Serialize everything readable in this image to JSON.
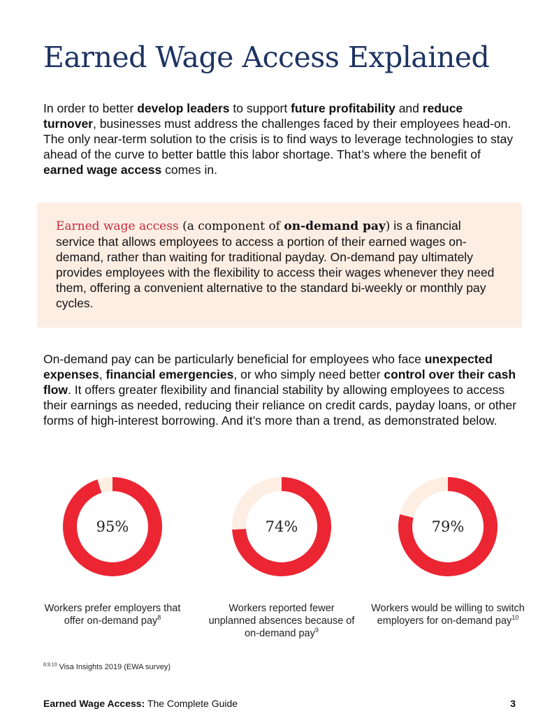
{
  "header": {
    "title": "Earned Wage Access Explained"
  },
  "intro": {
    "t1": "In order to better ",
    "b1": "develop leaders",
    "t2": " to support ",
    "b2": "future profitability",
    "t3": " and ",
    "b3": "reduce turnover",
    "t4": ", businesses must address the challenges faced by their employees head-on. The only near-term solution to the crisis is to find ways to leverage technologies to stay ahead of the curve to better battle this labor shortage. That’s where the benefit of ",
    "b4": "earned wage access",
    "t5": " comes in."
  },
  "callout": {
    "term": "Earned wage access",
    "paren_open": " (a component of ",
    "term2": "on-demand pay",
    "paren_close": ")",
    "body": " is a financial service that allows employees to access a portion of their earned wages on-demand, rather than waiting for traditional payday. On-demand pay ultimately provides employees with the flexibility to access their wages whenever they need them, offering a convenient alternative to the standard bi-weekly or monthly pay cycles."
  },
  "benefits": {
    "t1": "On-demand pay can be particularly beneficial for employees who face ",
    "b1": "unexpected expenses",
    "t2": ", ",
    "b2": "financial emergencies",
    "t3": ", or who simply need better ",
    "b3": "control over their cash flow",
    "t4": ". It offers greater flexibility and financial stability by allowing employees to access their earnings as needed, reducing their reliance on credit cards, payday loans, or other forms of high-interest borrowing. And it’s more than a trend, as demonstrated below."
  },
  "stats": [
    {
      "label": "95%",
      "value": 95,
      "caption": "Workers prefer employers that offer on-demand pay",
      "ref": "8"
    },
    {
      "label": "74%",
      "value": 74,
      "caption": "Workers reported fewer unplanned absences because of on-demand pay",
      "ref": "9"
    },
    {
      "label": "79%",
      "value": 79,
      "caption": "Workers would be willing to switch employers for on-demand pay",
      "ref": "10"
    }
  ],
  "colors": {
    "accent": "#ec2533",
    "track": "#fdeee4",
    "title": "#1d3461",
    "callout_term": "#c5283d"
  },
  "footnote": {
    "refs": "8,9,10",
    "text": " Visa Insights 2019 (EWA survey)"
  },
  "footer": {
    "bold": "Earned Wage Access:",
    "text": " The Complete Guide",
    "page": "3"
  }
}
